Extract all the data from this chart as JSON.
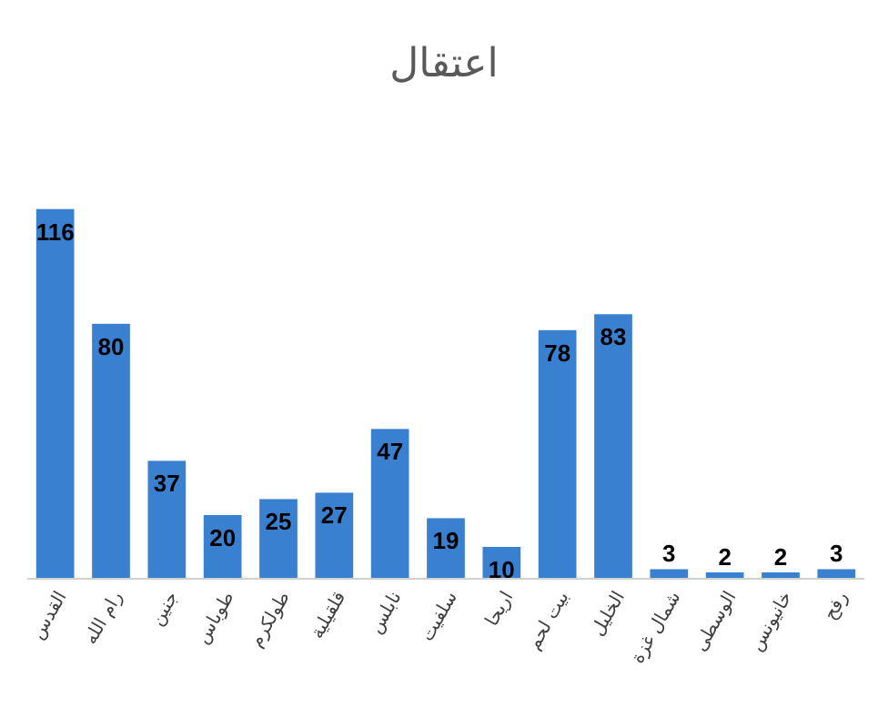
{
  "chart_data": {
    "type": "bar",
    "title": "اعتقال",
    "categories": [
      "القدس",
      "رام الله",
      "جنين",
      "طوباس",
      "طولكرم",
      "قلقيلية",
      "نابلس",
      "سلفيت",
      "اريحا",
      "بيت لحم",
      "الخليل",
      "شمال غزة",
      "الوسطى",
      "خانيونس",
      "رفح"
    ],
    "values": [
      116,
      80,
      37,
      20,
      25,
      27,
      47,
      19,
      10,
      78,
      83,
      3,
      2,
      2,
      3
    ],
    "color": "#3a80d0",
    "data_labels": true
  }
}
